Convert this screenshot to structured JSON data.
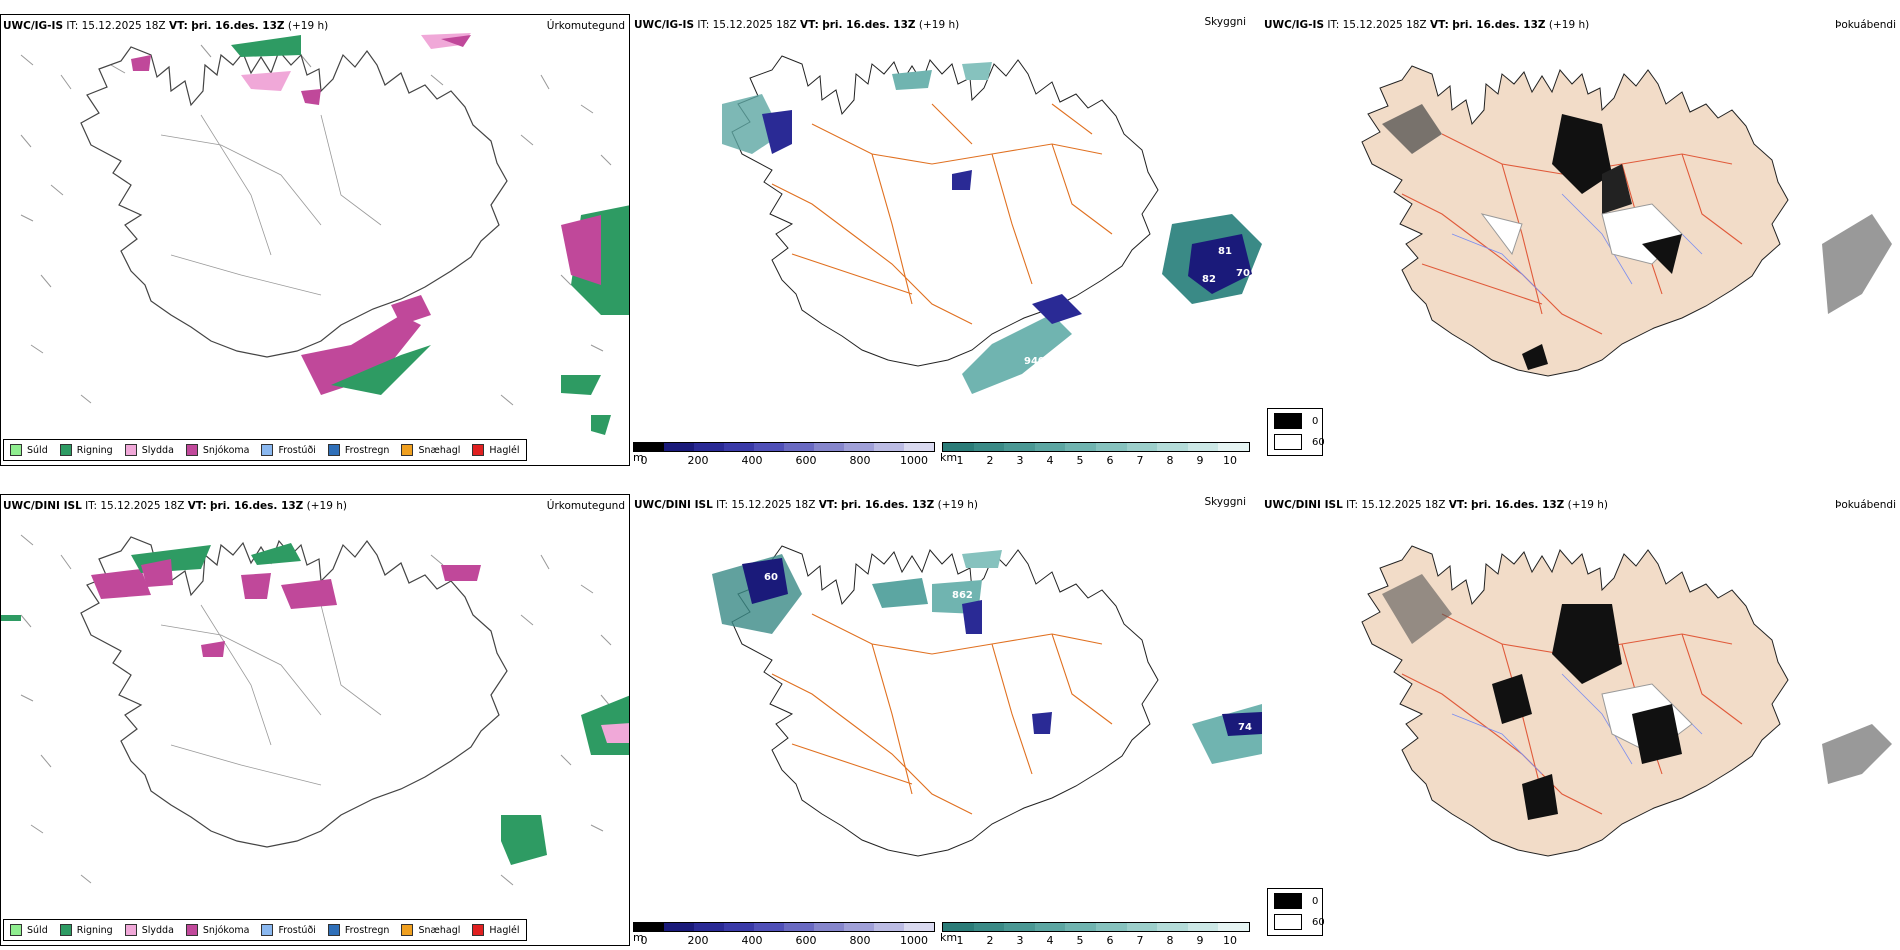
{
  "rows": [
    {
      "model": "UWC/IG-IS",
      "it_label": "IT:",
      "it_value": "15.12.2025 18Z",
      "vt_label": "VT:",
      "vt_value": "þri. 16.des. 13Z",
      "lead": "(+19 h)"
    },
    {
      "model": "UWC/DINI ISL",
      "it_label": "IT:",
      "it_value": "15.12.2025 18Z",
      "vt_label": "VT:",
      "vt_value": "þri. 16.des. 13Z",
      "lead": "(+19 h)"
    }
  ],
  "panel_titles": {
    "precip_type": "Úrkomutegund",
    "cloud_base": "Skyggni",
    "fog": "Þokuábendi"
  },
  "ptype_legend": [
    {
      "label": "Súld",
      "color": "#90ee90"
    },
    {
      "label": "Rigning",
      "color": "#2e9b63"
    },
    {
      "label": "Slydda",
      "color": "#f0a8d8"
    },
    {
      "label": "Snjókoma",
      "color": "#c0489a"
    },
    {
      "label": "Frostúði",
      "color": "#8ab8f0"
    },
    {
      "label": "Frostregn",
      "color": "#2f6fb8"
    },
    {
      "label": "Snæhagl",
      "color": "#f0a020"
    },
    {
      "label": "Haglél",
      "color": "#e02020"
    }
  ],
  "cloud_legend": {
    "height_unit": "m",
    "height_ticks": [
      "0",
      "200",
      "400",
      "600",
      "800",
      "1000"
    ],
    "height_colors": [
      "#000000",
      "#1a1a7a",
      "#2a2a95",
      "#3a3aa8",
      "#5050b8",
      "#6a6ac2",
      "#8686cc",
      "#a0a0d8",
      "#bcbce4",
      "#dadaf0"
    ],
    "vis_unit": "km",
    "vis_ticks": [
      "1",
      "2",
      "3",
      "4",
      "5",
      "6",
      "7",
      "8",
      "9",
      "10"
    ],
    "vis_colors": [
      "#2b7c78",
      "#3a8a86",
      "#4a9894",
      "#5ca6a2",
      "#70b4b0",
      "#86c2be",
      "#9ccfcb",
      "#b4dcd9",
      "#cce8e6",
      "#e6f4f3"
    ]
  },
  "fog_legend": {
    "labels": [
      "0",
      "60"
    ],
    "colors": [
      "#000000",
      "#ffffff"
    ]
  },
  "map_labels": {
    "row1": [
      "81",
      "82",
      "70",
      "940"
    ],
    "row2": [
      "60",
      "862",
      "74"
    ]
  },
  "colors": {
    "land_fog": "#f2dcc8",
    "roads": "#e07020",
    "roads_fog": "#e05a3a",
    "rivers": "#7a8cf0",
    "outline": "#222222"
  }
}
